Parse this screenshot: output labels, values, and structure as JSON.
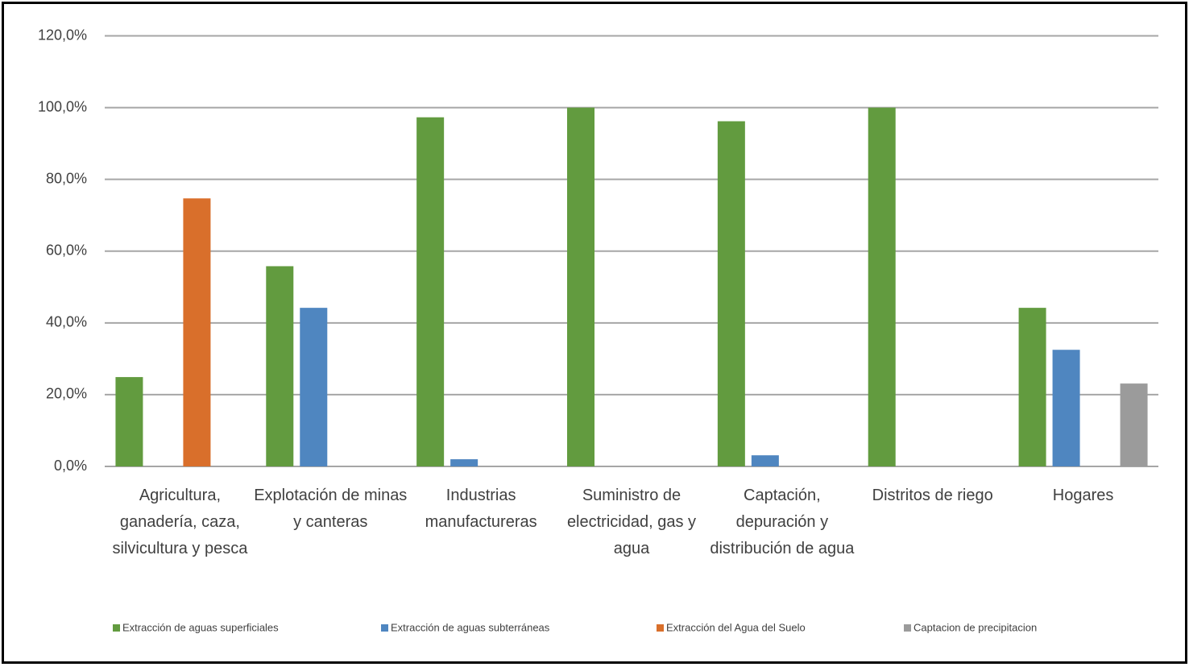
{
  "chart_data": {
    "type": "bar",
    "categories": [
      "Agricultura, ganadería, caza, silvicultura y pesca",
      "Explotación de minas y canteras",
      "Industrias manufactureras",
      "Suministro de electricidad, gas y agua",
      "Captación, depuración y distribución de agua",
      "Distritos de riego",
      "Hogares"
    ],
    "series": [
      {
        "name": "Extracción de aguas superficiales",
        "color": "#629b3f",
        "values": [
          24.9,
          55.8,
          97.3,
          100,
          96.2,
          100,
          44.2
        ]
      },
      {
        "name": "Extracción de aguas subterráneas",
        "color": "#4f86c0",
        "values": [
          0,
          44.2,
          2.0,
          0,
          3.1,
          0,
          32.5
        ]
      },
      {
        "name": "Extracción del Agua del Suelo",
        "color": "#d96f2b",
        "values": [
          74.7,
          0,
          0,
          0,
          0,
          0,
          0
        ]
      },
      {
        "name": "Captacion de precipitacion",
        "color": "#9b9b9b",
        "values": [
          0,
          0,
          0,
          0,
          0,
          0,
          23.1
        ]
      }
    ],
    "ylim": [
      0,
      120
    ],
    "yticks": [
      {
        "value": 0,
        "label": "0,0%"
      },
      {
        "value": 20,
        "label": "20,0%"
      },
      {
        "value": 40,
        "label": "40,0%"
      },
      {
        "value": 60,
        "label": "60,0%"
      },
      {
        "value": 80,
        "label": "80,0%"
      },
      {
        "value": 100,
        "label": "100,0%"
      },
      {
        "value": 120,
        "label": "120,0%"
      }
    ],
    "grid": true,
    "legend": "bottom"
  }
}
